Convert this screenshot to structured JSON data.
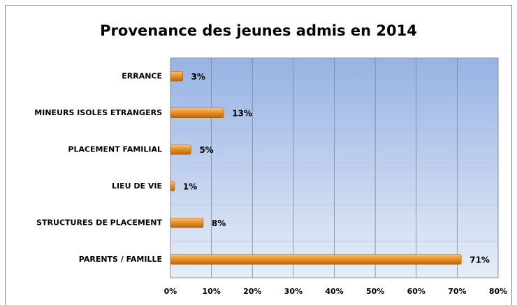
{
  "chart_data": {
    "type": "barh",
    "title": "Provenance des jeunes admis en 2014",
    "categories": [
      "ERRANCE",
      "MINEURS ISOLES ETRANGERS",
      "PLACEMENT FAMILIAL",
      "LIEU DE VIE",
      "STRUCTURES DE PLACEMENT",
      "PARENTS / FAMILLE"
    ],
    "values": [
      3,
      13,
      5,
      1,
      8,
      71
    ],
    "value_labels": [
      "3%",
      "13%",
      "5%",
      "1%",
      "8%",
      "71%"
    ],
    "color": "#e8922a",
    "xlim": [
      0,
      80
    ],
    "xticks": [
      {
        "value": 0,
        "label": "0%"
      },
      {
        "value": 10,
        "label": "10%"
      },
      {
        "value": 20,
        "label": "20%"
      },
      {
        "value": 30,
        "label": "30%"
      },
      {
        "value": 40,
        "label": "40%"
      },
      {
        "value": 50,
        "label": "50%"
      },
      {
        "value": 60,
        "label": "60%"
      },
      {
        "value": 70,
        "label": "70%"
      },
      {
        "value": 80,
        "label": "80%"
      }
    ],
    "grid": true
  }
}
